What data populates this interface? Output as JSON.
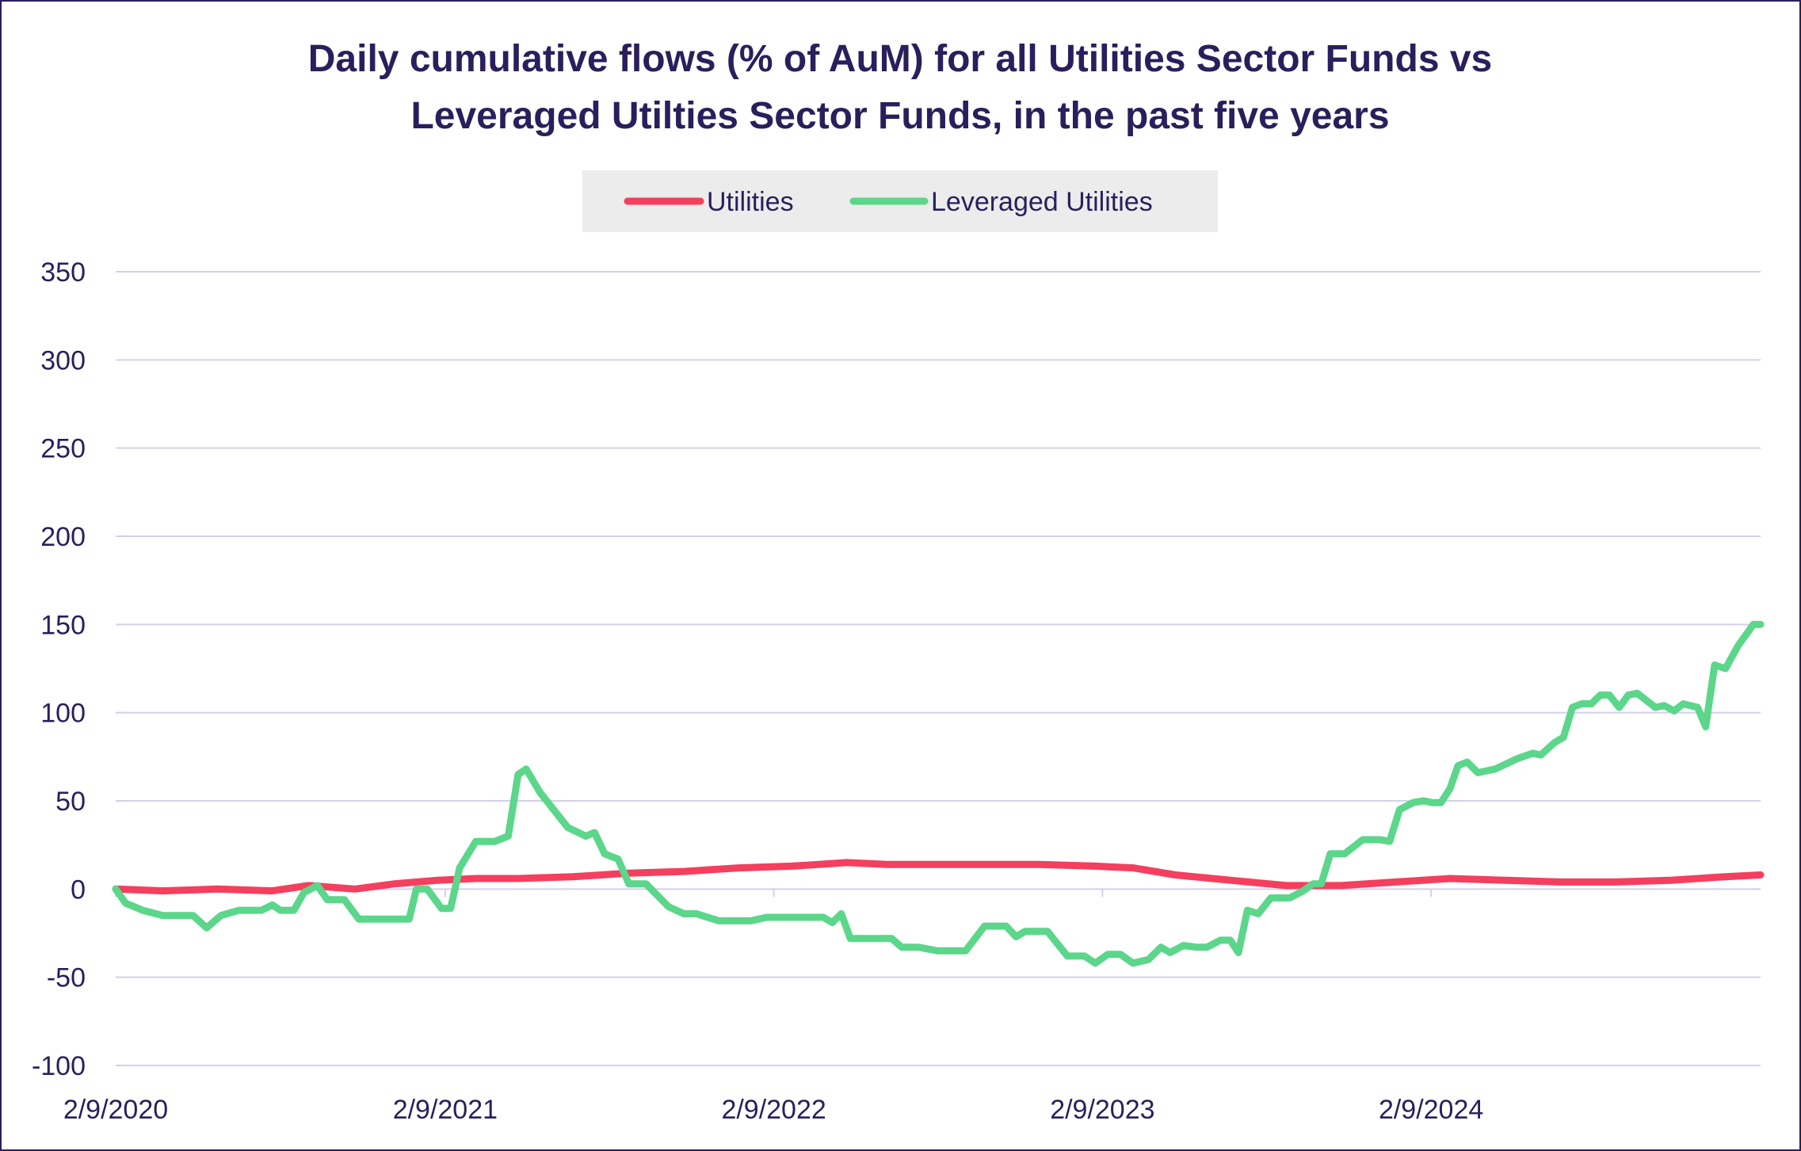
{
  "chart_data": {
    "type": "line",
    "title_lines": [
      "Daily cumulative flows (% of AuM) for all Utilities Sector Funds vs",
      "Leveraged Utilties Sector Funds, in the past five years"
    ],
    "xlabel": "",
    "ylabel": "",
    "x_range": [
      "2020-02-09",
      "2025-02-09"
    ],
    "x_ticks": [
      "2/9/2020",
      "2/9/2021",
      "2/9/2022",
      "2/9/2023",
      "2/9/2024"
    ],
    "x_tick_dates": [
      "2020-02-09",
      "2021-02-09",
      "2022-02-09",
      "2023-02-09",
      "2024-02-09"
    ],
    "ylim": [
      -100,
      350
    ],
    "y_ticks": [
      -100,
      -50,
      0,
      50,
      100,
      150,
      200,
      250,
      300,
      350
    ],
    "grid": "horizontal",
    "legend_position": "top-center",
    "series": [
      {
        "name": "Utilities",
        "color": "#f43f5e",
        "points": [
          [
            "2020-02-09",
            0
          ],
          [
            "2020-04-01",
            -1
          ],
          [
            "2020-06-01",
            0
          ],
          [
            "2020-08-01",
            -1
          ],
          [
            "2020-09-10",
            2
          ],
          [
            "2020-11-01",
            0
          ],
          [
            "2020-12-15",
            3
          ],
          [
            "2021-02-01",
            5
          ],
          [
            "2021-03-15",
            6
          ],
          [
            "2021-05-01",
            6
          ],
          [
            "2021-07-01",
            7
          ],
          [
            "2021-09-01",
            9
          ],
          [
            "2021-11-01",
            10
          ],
          [
            "2022-01-01",
            12
          ],
          [
            "2022-03-01",
            13
          ],
          [
            "2022-05-01",
            15
          ],
          [
            "2022-06-15",
            14
          ],
          [
            "2022-08-01",
            14
          ],
          [
            "2022-10-01",
            14
          ],
          [
            "2022-12-01",
            14
          ],
          [
            "2023-02-01",
            13
          ],
          [
            "2023-03-15",
            12
          ],
          [
            "2023-05-01",
            8
          ],
          [
            "2023-07-01",
            5
          ],
          [
            "2023-09-01",
            2
          ],
          [
            "2023-11-01",
            2
          ],
          [
            "2024-01-01",
            4
          ],
          [
            "2024-03-01",
            6
          ],
          [
            "2024-05-01",
            5
          ],
          [
            "2024-07-01",
            4
          ],
          [
            "2024-09-01",
            4
          ],
          [
            "2024-11-01",
            5
          ],
          [
            "2025-01-01",
            7
          ],
          [
            "2025-02-09",
            8
          ]
        ]
      },
      {
        "name": "Leveraged Utilities",
        "color": "#5cd68a",
        "points": [
          [
            "2020-02-09",
            0
          ],
          [
            "2020-02-20",
            -8
          ],
          [
            "2020-03-10",
            -12
          ],
          [
            "2020-04-01",
            -15
          ],
          [
            "2020-05-05",
            -15
          ],
          [
            "2020-05-20",
            -22
          ],
          [
            "2020-06-05",
            -15
          ],
          [
            "2020-06-25",
            -12
          ],
          [
            "2020-07-20",
            -12
          ],
          [
            "2020-08-01",
            -9
          ],
          [
            "2020-08-10",
            -12
          ],
          [
            "2020-08-25",
            -12
          ],
          [
            "2020-09-05",
            -2
          ],
          [
            "2020-09-20",
            2
          ],
          [
            "2020-10-01",
            -6
          ],
          [
            "2020-10-20",
            -6
          ],
          [
            "2020-11-05",
            -17
          ],
          [
            "2020-12-15",
            -17
          ],
          [
            "2020-12-31",
            -17
          ],
          [
            "2021-01-08",
            0
          ],
          [
            "2021-01-20",
            0
          ],
          [
            "2021-02-05",
            -11
          ],
          [
            "2021-02-15",
            -11
          ],
          [
            "2021-02-25",
            12
          ],
          [
            "2021-03-15",
            27
          ],
          [
            "2021-04-05",
            27
          ],
          [
            "2021-04-20",
            30
          ],
          [
            "2021-05-01",
            65
          ],
          [
            "2021-05-10",
            68
          ],
          [
            "2021-05-25",
            55
          ],
          [
            "2021-06-25",
            35
          ],
          [
            "2021-07-15",
            30
          ],
          [
            "2021-07-25",
            32
          ],
          [
            "2021-08-05",
            20
          ],
          [
            "2021-08-20",
            17
          ],
          [
            "2021-09-01",
            3
          ],
          [
            "2021-09-20",
            3
          ],
          [
            "2021-10-15",
            -10
          ],
          [
            "2021-11-01",
            -14
          ],
          [
            "2021-11-15",
            -14
          ],
          [
            "2021-12-10",
            -18
          ],
          [
            "2022-01-15",
            -18
          ],
          [
            "2022-02-01",
            -16
          ],
          [
            "2022-03-10",
            -16
          ],
          [
            "2022-04-05",
            -16
          ],
          [
            "2022-04-15",
            -19
          ],
          [
            "2022-04-25",
            -14
          ],
          [
            "2022-05-05",
            -28
          ],
          [
            "2022-06-20",
            -28
          ],
          [
            "2022-07-01",
            -33
          ],
          [
            "2022-07-20",
            -33
          ],
          [
            "2022-08-10",
            -35
          ],
          [
            "2022-09-10",
            -35
          ],
          [
            "2022-10-01",
            -21
          ],
          [
            "2022-10-25",
            -21
          ],
          [
            "2022-11-05",
            -27
          ],
          [
            "2022-11-15",
            -24
          ],
          [
            "2022-12-10",
            -24
          ],
          [
            "2023-01-01",
            -38
          ],
          [
            "2023-01-20",
            -38
          ],
          [
            "2023-02-01",
            -42
          ],
          [
            "2023-02-15",
            -37
          ],
          [
            "2023-03-01",
            -37
          ],
          [
            "2023-03-15",
            -42
          ],
          [
            "2023-04-01",
            -40
          ],
          [
            "2023-04-15",
            -33
          ],
          [
            "2023-04-25",
            -36
          ],
          [
            "2023-05-10",
            -32
          ],
          [
            "2023-05-25",
            -33
          ],
          [
            "2023-06-05",
            -33
          ],
          [
            "2023-06-20",
            -29
          ],
          [
            "2023-07-01",
            -29
          ],
          [
            "2023-07-10",
            -36
          ],
          [
            "2023-07-20",
            -12
          ],
          [
            "2023-08-01",
            -14
          ],
          [
            "2023-08-15",
            -5
          ],
          [
            "2023-09-05",
            -5
          ],
          [
            "2023-09-20",
            -1
          ],
          [
            "2023-10-01",
            3
          ],
          [
            "2023-10-10",
            3
          ],
          [
            "2023-10-20",
            20
          ],
          [
            "2023-11-05",
            20
          ],
          [
            "2023-11-25",
            28
          ],
          [
            "2023-12-15",
            28
          ],
          [
            "2023-12-25",
            27
          ],
          [
            "2024-01-05",
            45
          ],
          [
            "2024-01-20",
            49
          ],
          [
            "2024-02-01",
            50
          ],
          [
            "2024-02-10",
            49
          ],
          [
            "2024-02-20",
            49
          ],
          [
            "2024-03-01",
            57
          ],
          [
            "2024-03-10",
            70
          ],
          [
            "2024-03-20",
            72
          ],
          [
            "2024-04-01",
            66
          ],
          [
            "2024-04-20",
            68
          ],
          [
            "2024-05-15",
            74
          ],
          [
            "2024-06-01",
            77
          ],
          [
            "2024-06-10",
            76
          ],
          [
            "2024-06-25",
            83
          ],
          [
            "2024-07-05",
            86
          ],
          [
            "2024-07-15",
            103
          ],
          [
            "2024-07-25",
            105
          ],
          [
            "2024-08-05",
            105
          ],
          [
            "2024-08-15",
            110
          ],
          [
            "2024-08-25",
            110
          ],
          [
            "2024-09-05",
            103
          ],
          [
            "2024-09-15",
            110
          ],
          [
            "2024-09-25",
            111
          ],
          [
            "2024-10-05",
            107
          ],
          [
            "2024-10-15",
            103
          ],
          [
            "2024-10-25",
            104
          ],
          [
            "2024-11-05",
            101
          ],
          [
            "2024-11-15",
            105
          ],
          [
            "2024-12-01",
            103
          ],
          [
            "2024-12-10",
            92
          ],
          [
            "2024-12-20",
            127
          ],
          [
            "2025-01-01",
            125
          ],
          [
            "2025-01-15",
            138
          ],
          [
            "2025-02-01",
            150
          ],
          [
            "2025-02-09",
            150
          ]
        ]
      }
    ]
  },
  "legend": {
    "items": [
      {
        "label": "Utilities",
        "color": "#f43f5e"
      },
      {
        "label": "Leveraged Utilities",
        "color": "#5cd68a"
      }
    ]
  }
}
